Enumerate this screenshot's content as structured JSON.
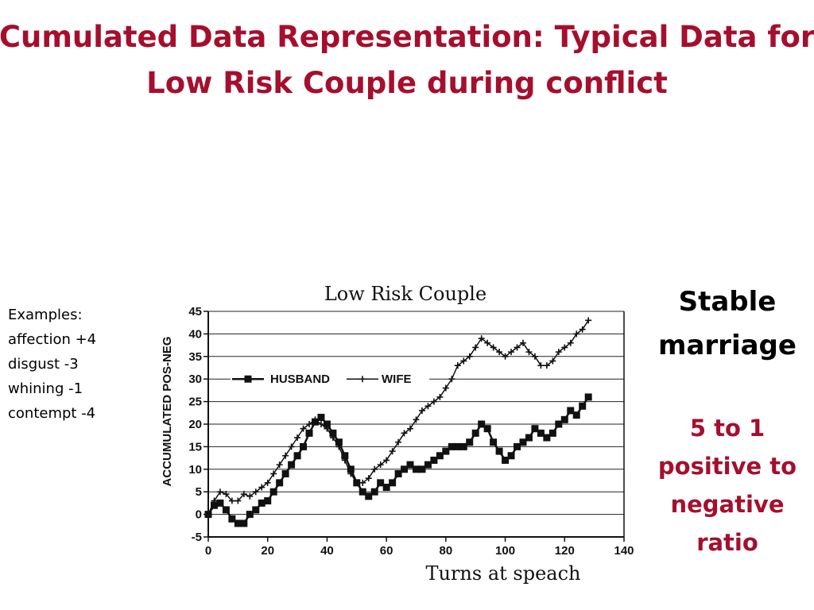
{
  "slide": {
    "title_lines": [
      "Cumulated Data Representation: Typical Data for",
      "Low Risk Couple during conflict"
    ],
    "examples": [
      "Examples:",
      "affection +4",
      "disgust -3",
      "whining -1",
      "contempt -4"
    ],
    "stable_lines": [
      "Stable",
      "marriage"
    ],
    "ratio_lines": [
      "5 to 1",
      "positive to",
      "negative",
      "ratio"
    ],
    "title_color": "#a50f2d",
    "ratio_color": "#a50f2d"
  },
  "chart_data": {
    "type": "line",
    "title": "Low Risk Couple",
    "xlabel": "Turns at speach",
    "ylabel": "ACCUMULATED POS-NEG",
    "xlim": [
      0,
      140
    ],
    "ylim": [
      -5,
      45
    ],
    "x_ticks": [
      0,
      20,
      40,
      60,
      80,
      100,
      120,
      140
    ],
    "y_ticks": [
      -5,
      0,
      5,
      10,
      15,
      20,
      25,
      30,
      35,
      40,
      45
    ],
    "grid": "horizontal",
    "legend_position": "upper-left",
    "series": [
      {
        "name": "HUSBAND",
        "marker": "square",
        "color": "#111111",
        "points": [
          [
            0,
            0
          ],
          [
            2,
            2
          ],
          [
            4,
            2.5
          ],
          [
            6,
            1
          ],
          [
            8,
            -1
          ],
          [
            10,
            -2
          ],
          [
            12,
            -2
          ],
          [
            14,
            0
          ],
          [
            16,
            1
          ],
          [
            18,
            2.5
          ],
          [
            20,
            3
          ],
          [
            22,
            5
          ],
          [
            24,
            7
          ],
          [
            26,
            9
          ],
          [
            28,
            11
          ],
          [
            30,
            13
          ],
          [
            32,
            15
          ],
          [
            34,
            18
          ],
          [
            36,
            20.5
          ],
          [
            38,
            21.5
          ],
          [
            40,
            20
          ],
          [
            42,
            18
          ],
          [
            44,
            16
          ],
          [
            46,
            13
          ],
          [
            48,
            10
          ],
          [
            50,
            7
          ],
          [
            52,
            5
          ],
          [
            54,
            4
          ],
          [
            56,
            5
          ],
          [
            58,
            7
          ],
          [
            60,
            6
          ],
          [
            62,
            7
          ],
          [
            64,
            9
          ],
          [
            66,
            10
          ],
          [
            68,
            11
          ],
          [
            70,
            10
          ],
          [
            72,
            10
          ],
          [
            74,
            11
          ],
          [
            76,
            12
          ],
          [
            78,
            13
          ],
          [
            80,
            14
          ],
          [
            82,
            15
          ],
          [
            84,
            15
          ],
          [
            86,
            15
          ],
          [
            88,
            16
          ],
          [
            90,
            18
          ],
          [
            92,
            20
          ],
          [
            94,
            19
          ],
          [
            96,
            16
          ],
          [
            98,
            14
          ],
          [
            100,
            12
          ],
          [
            102,
            13
          ],
          [
            104,
            15
          ],
          [
            106,
            16
          ],
          [
            108,
            17
          ],
          [
            110,
            19
          ],
          [
            112,
            18
          ],
          [
            114,
            17
          ],
          [
            116,
            18
          ],
          [
            118,
            20
          ],
          [
            120,
            21
          ],
          [
            122,
            23
          ],
          [
            124,
            22
          ],
          [
            126,
            24
          ],
          [
            128,
            26
          ]
        ]
      },
      {
        "name": "WIFE",
        "marker": "plus",
        "color": "#111111",
        "points": [
          [
            0,
            0
          ],
          [
            2,
            3
          ],
          [
            4,
            5
          ],
          [
            6,
            4.5
          ],
          [
            8,
            3
          ],
          [
            10,
            3
          ],
          [
            12,
            4.5
          ],
          [
            14,
            4
          ],
          [
            16,
            5
          ],
          [
            18,
            6
          ],
          [
            20,
            7
          ],
          [
            22,
            9
          ],
          [
            24,
            11
          ],
          [
            26,
            13
          ],
          [
            28,
            15
          ],
          [
            30,
            17
          ],
          [
            32,
            19
          ],
          [
            34,
            20
          ],
          [
            36,
            21
          ],
          [
            38,
            20
          ],
          [
            40,
            19
          ],
          [
            42,
            17
          ],
          [
            44,
            15
          ],
          [
            46,
            12
          ],
          [
            48,
            9
          ],
          [
            50,
            7
          ],
          [
            52,
            7
          ],
          [
            54,
            8
          ],
          [
            56,
            10
          ],
          [
            58,
            11
          ],
          [
            60,
            12
          ],
          [
            62,
            14
          ],
          [
            64,
            16
          ],
          [
            66,
            18
          ],
          [
            68,
            19
          ],
          [
            70,
            21
          ],
          [
            72,
            23
          ],
          [
            74,
            24
          ],
          [
            76,
            25
          ],
          [
            78,
            26
          ],
          [
            80,
            28
          ],
          [
            82,
            30
          ],
          [
            84,
            33
          ],
          [
            86,
            34
          ],
          [
            88,
            35
          ],
          [
            90,
            37
          ],
          [
            92,
            39
          ],
          [
            94,
            38
          ],
          [
            96,
            37
          ],
          [
            98,
            36
          ],
          [
            100,
            35
          ],
          [
            102,
            36
          ],
          [
            104,
            37
          ],
          [
            106,
            38
          ],
          [
            108,
            36
          ],
          [
            110,
            35
          ],
          [
            112,
            33
          ],
          [
            114,
            33
          ],
          [
            116,
            34
          ],
          [
            118,
            36
          ],
          [
            120,
            37
          ],
          [
            122,
            38
          ],
          [
            124,
            40
          ],
          [
            126,
            41
          ],
          [
            128,
            43
          ]
        ]
      }
    ]
  }
}
